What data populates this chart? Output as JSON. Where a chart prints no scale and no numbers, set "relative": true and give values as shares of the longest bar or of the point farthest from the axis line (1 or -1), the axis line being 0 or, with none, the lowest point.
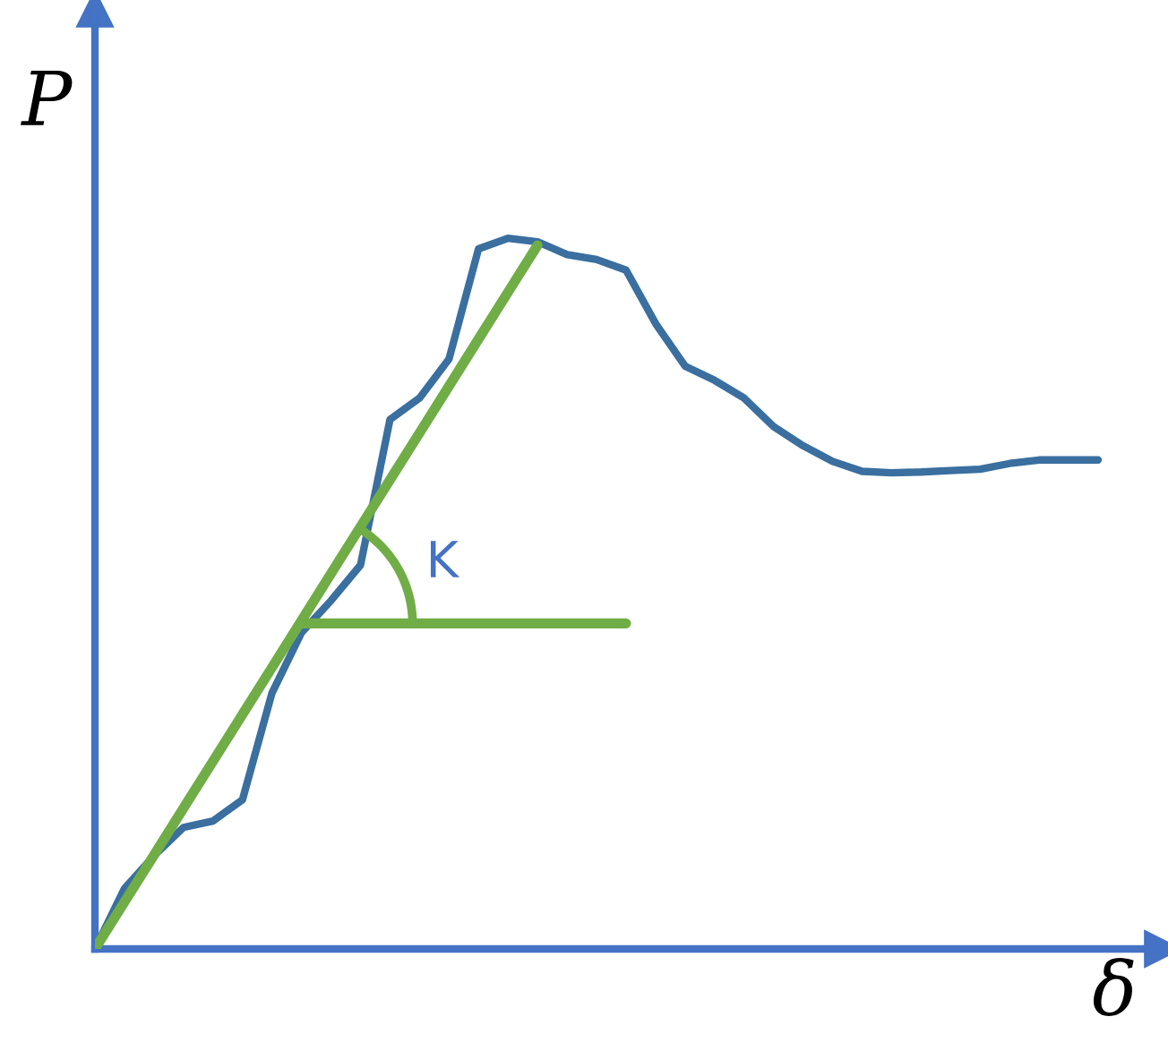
{
  "chart_data": {
    "type": "line",
    "relative": true,
    "xlabel": "δ",
    "ylabel": "P",
    "annotations": [
      "K"
    ],
    "categories": [
      null,
      null,
      null,
      null,
      null,
      null,
      null,
      null,
      null,
      null,
      null,
      null,
      null,
      null,
      null,
      null,
      null,
      null,
      null,
      null,
      null,
      null,
      null,
      null,
      null,
      null,
      null,
      null,
      null,
      null,
      null,
      null,
      null,
      null,
      null
    ],
    "series": [
      {
        "color": "#3a6f9f",
        "values": [
          0,
          0.085,
          0.131,
          0.171,
          0.18,
          0.21,
          0.36,
          0.445,
          0.49,
          0.54,
          0.745,
          0.775,
          0.83,
          0.985,
          1.0,
          0.995,
          0.977,
          0.97,
          0.955,
          0.88,
          0.82,
          0.8,
          0.775,
          0.735,
          0.708,
          0.686,
          0.672,
          0.67,
          0.671,
          0.673,
          0.675,
          0.683,
          0.688,
          0.688,
          0.688
        ]
      },
      {
        "color": "#70ad47",
        "values": [
          0,
          0.066,
          0.132,
          0.198,
          0.264,
          0.33,
          0.396,
          0.462,
          0.528,
          0.594,
          0.66,
          0.726,
          0.792,
          0.858,
          0.924,
          0.99,
          null,
          null,
          null,
          null,
          null,
          null,
          null,
          null,
          null,
          null,
          null,
          null,
          null,
          null,
          null,
          null,
          null,
          null,
          null
        ]
      },
      {
        "color": "#70ad47",
        "values": [
          null,
          null,
          null,
          null,
          null,
          null,
          null,
          0.458,
          0.458,
          0.458,
          0.458,
          0.458,
          0.458,
          0.458,
          0.458,
          0.458,
          0.458,
          0.458,
          0.458,
          null,
          null,
          null,
          null,
          null,
          null,
          null,
          null,
          null,
          null,
          null,
          null,
          null,
          null,
          null,
          null
        ]
      }
    ]
  }
}
